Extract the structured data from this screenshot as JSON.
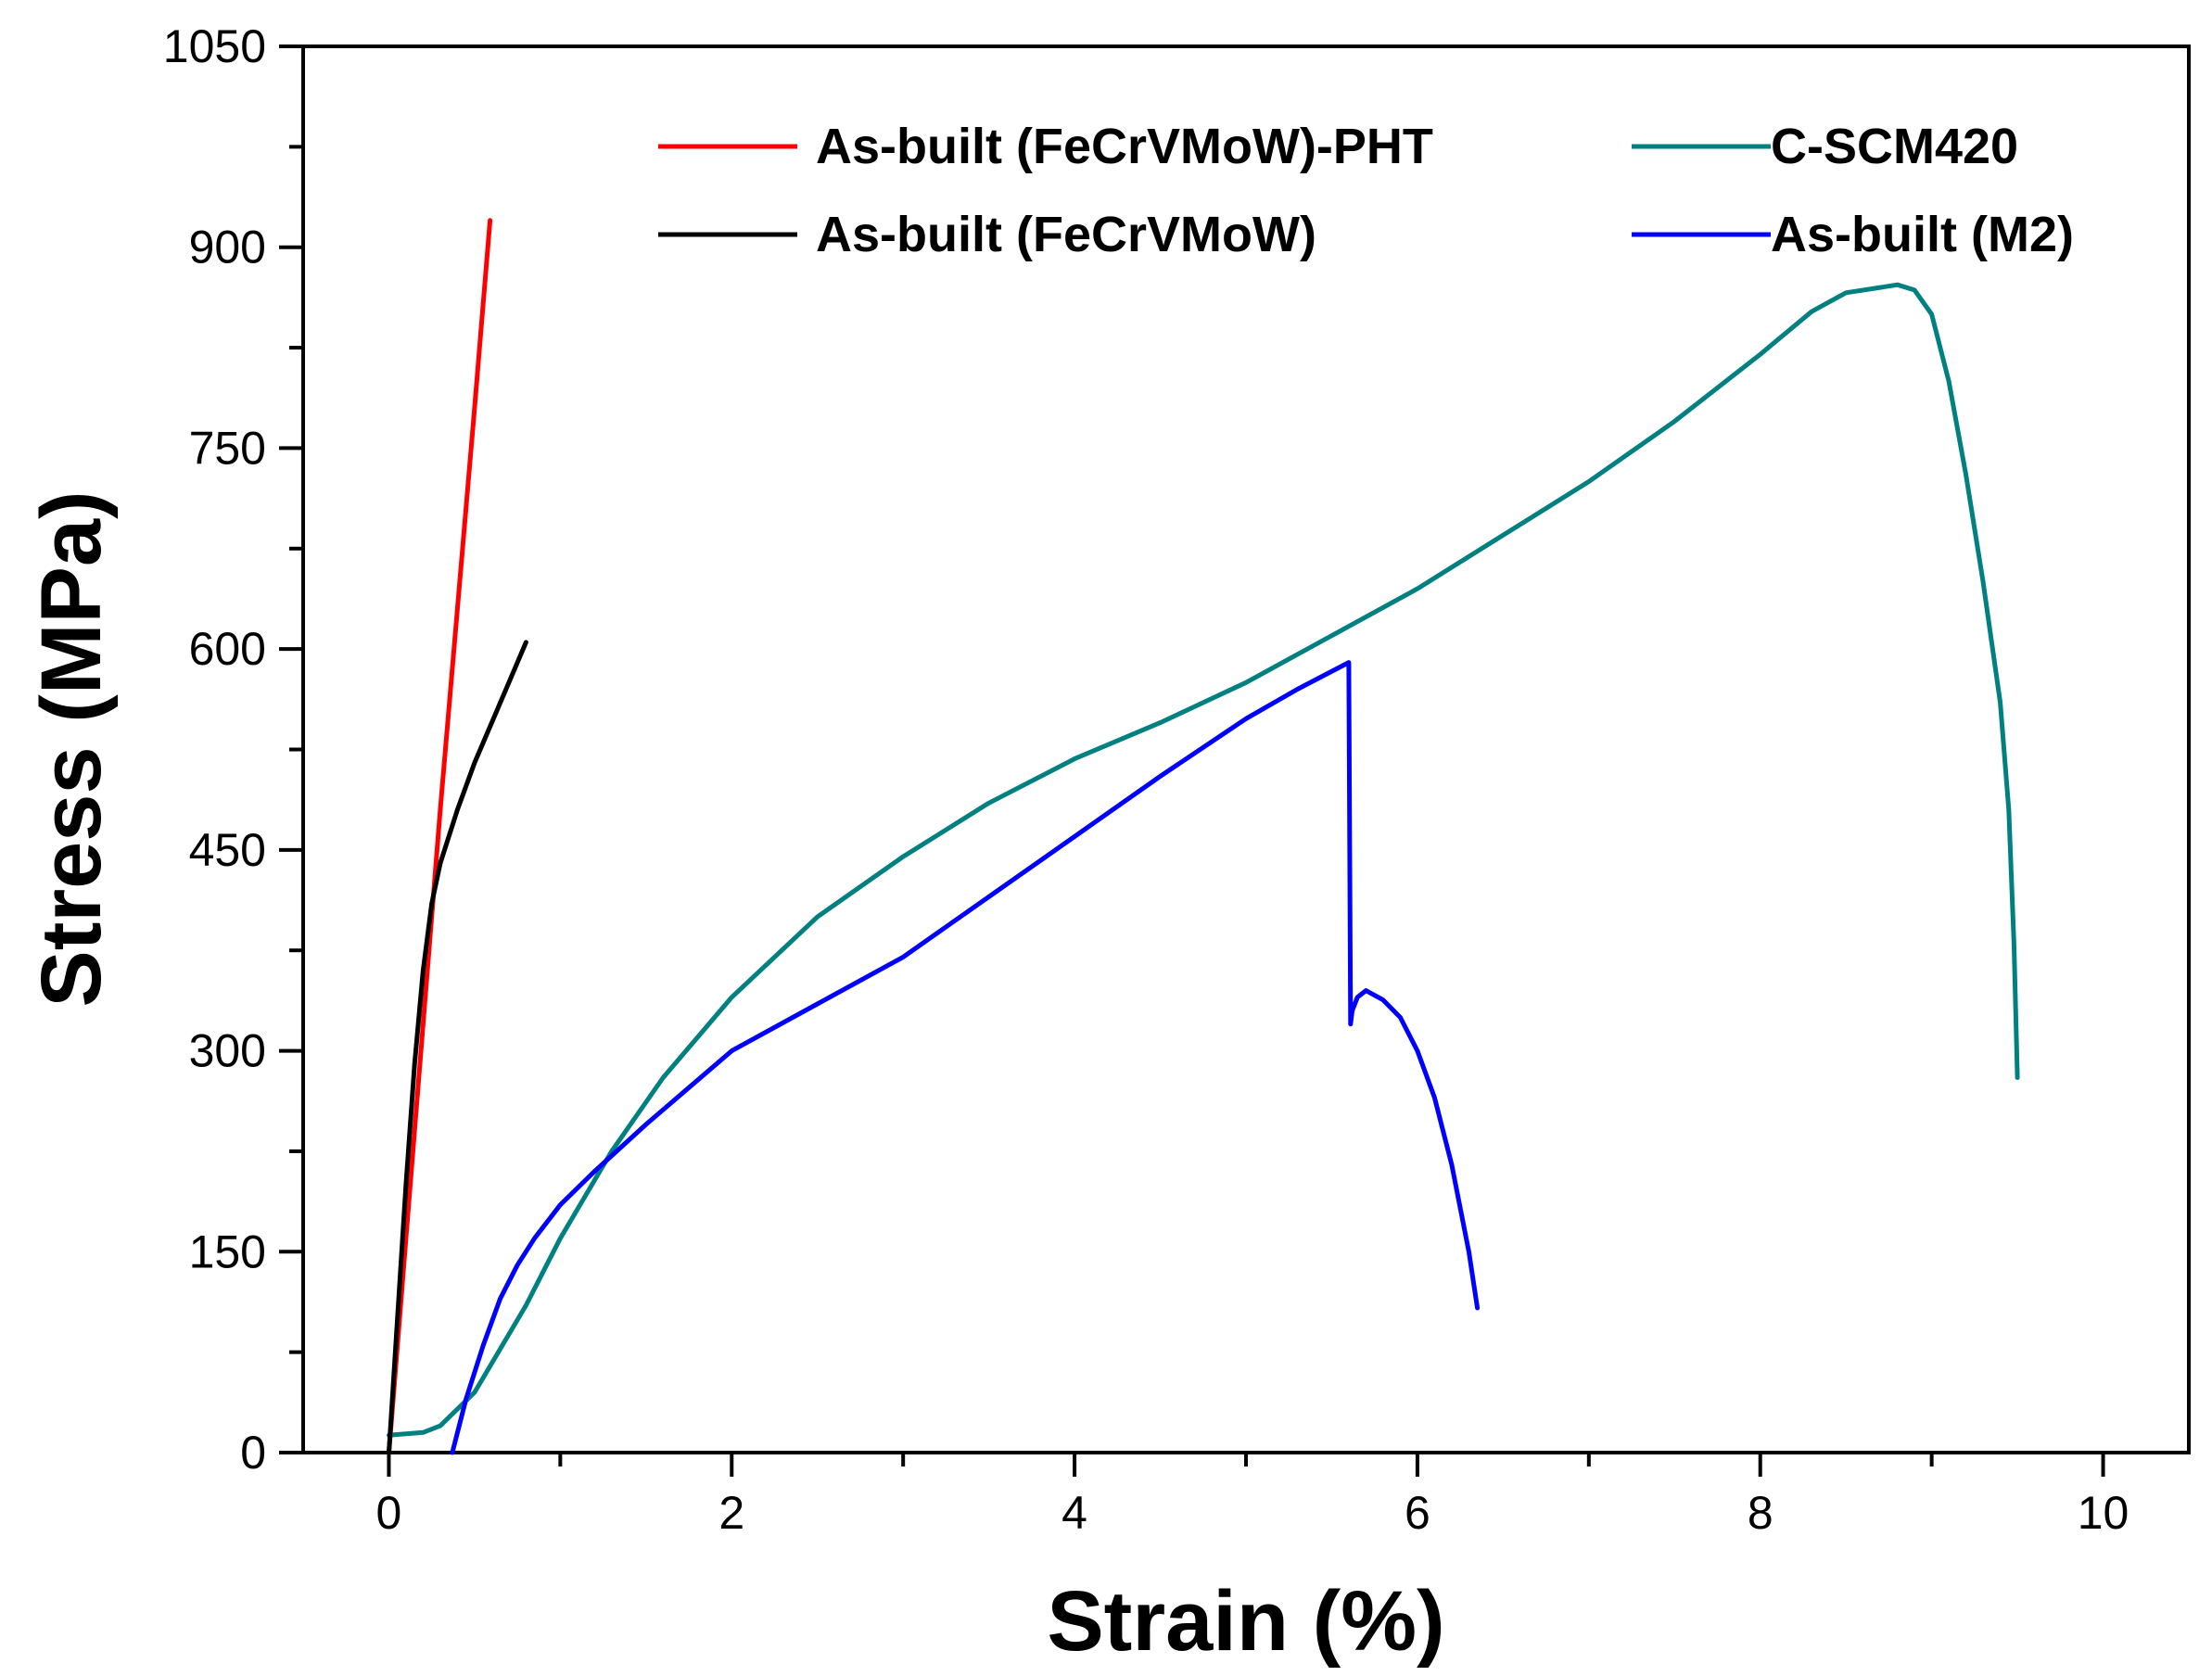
{
  "chart_data": {
    "type": "line",
    "title": "",
    "xlabel": "Strain (%)",
    "ylabel": "Stress (MPa)",
    "xlim": [
      -0.5,
      10.5
    ],
    "ylim": [
      0,
      1050
    ],
    "xticks": [
      0,
      2,
      4,
      6,
      8,
      10
    ],
    "yticks": [
      0,
      150,
      300,
      450,
      600,
      750,
      900,
      1050
    ],
    "xtick_labels": [
      "0",
      "2",
      "4",
      "6",
      "8",
      "10"
    ],
    "ytick_labels": [
      "0",
      "150",
      "300",
      "450",
      "600",
      "750",
      "900",
      "1050"
    ],
    "grid": false,
    "legend_position": "top",
    "series": [
      {
        "name": "As-built (FeCrVMoW)-PHT",
        "color": "#ff0000",
        "x": [
          0,
          0.1,
          0.2,
          0.3,
          0.4,
          0.5,
          0.59
        ],
        "y": [
          0,
          160,
          320,
          480,
          630,
          780,
          920
        ]
      },
      {
        "name": "C-SCM420",
        "color": "#008080",
        "x": [
          0,
          0.2,
          0.3,
          0.5,
          0.8,
          1.0,
          1.3,
          1.6,
          2.0,
          2.5,
          3.0,
          3.5,
          4.0,
          4.5,
          5.0,
          5.5,
          6.0,
          6.5,
          7.0,
          7.5,
          8.0,
          8.3,
          8.5,
          8.7,
          8.8,
          8.9,
          9.0,
          9.1,
          9.2,
          9.3,
          9.4,
          9.45,
          9.48,
          9.5
        ],
        "y": [
          13,
          15,
          20,
          45,
          110,
          160,
          225,
          280,
          340,
          400,
          445,
          485,
          518,
          545,
          575,
          610,
          645,
          685,
          725,
          770,
          820,
          852,
          866,
          870,
          872,
          868,
          850,
          800,
          730,
          650,
          560,
          480,
          380,
          280
        ]
      },
      {
        "name": "As-built (FeCrVMoW)",
        "color": "#000000",
        "x": [
          0,
          0.05,
          0.1,
          0.15,
          0.2,
          0.25,
          0.3,
          0.4,
          0.5,
          0.6,
          0.7,
          0.8
        ],
        "y": [
          0,
          100,
          200,
          290,
          360,
          410,
          440,
          480,
          515,
          545,
          575,
          605
        ]
      },
      {
        "name": "As-built (M2)",
        "color": "#0000ff",
        "x": [
          0.37,
          0.45,
          0.55,
          0.65,
          0.75,
          0.85,
          1.0,
          1.2,
          1.5,
          2.0,
          2.5,
          3.0,
          3.5,
          4.0,
          4.5,
          5.0,
          5.3,
          5.6,
          5.61,
          5.62,
          5.65,
          5.7,
          5.8,
          5.9,
          6.0,
          6.1,
          6.2,
          6.3,
          6.35
        ],
        "y": [
          0,
          40,
          80,
          115,
          140,
          160,
          185,
          210,
          245,
          300,
          335,
          370,
          415,
          460,
          505,
          548,
          570,
          590,
          320,
          330,
          340,
          345,
          338,
          325,
          300,
          265,
          215,
          150,
          108
        ]
      }
    ]
  }
}
